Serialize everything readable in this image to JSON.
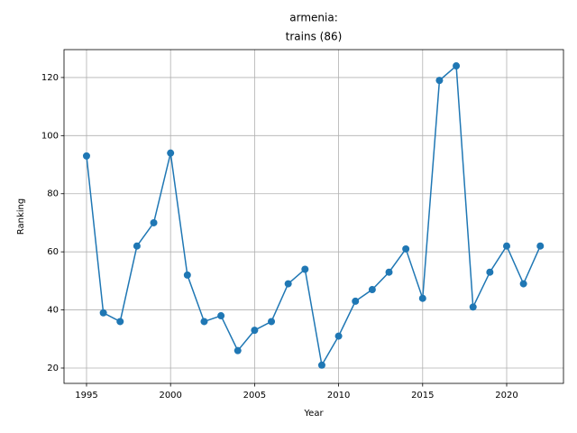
{
  "chart_data": {
    "type": "line",
    "title": [
      "armenia:",
      "trains (86)"
    ],
    "x_label": "Year",
    "y_label": "Ranking",
    "x": [
      1995,
      1996,
      1997,
      1998,
      1999,
      2000,
      2001,
      2002,
      2003,
      2004,
      2005,
      2006,
      2007,
      2008,
      2009,
      2010,
      2011,
      2012,
      2013,
      2014,
      2015,
      2016,
      2017,
      2018,
      2019,
      2020,
      2021,
      2022
    ],
    "series": [
      {
        "color": "#1f77b4",
        "values": [
          93,
          39,
          36,
          62,
          70,
          94,
          52,
          36,
          38,
          26,
          33,
          36,
          49,
          54,
          21,
          31,
          43,
          47,
          53,
          61,
          44,
          119,
          124,
          41,
          53,
          62,
          49,
          62
        ]
      }
    ],
    "xlim": [
      1993.66,
      2023.38
    ],
    "xticks": [
      1995,
      2000,
      2005,
      2010,
      2015,
      2020
    ],
    "ylim": [
      14.72,
      129.6
    ],
    "yticks": [
      20,
      40,
      60,
      80,
      100,
      120
    ],
    "grid": true
  }
}
